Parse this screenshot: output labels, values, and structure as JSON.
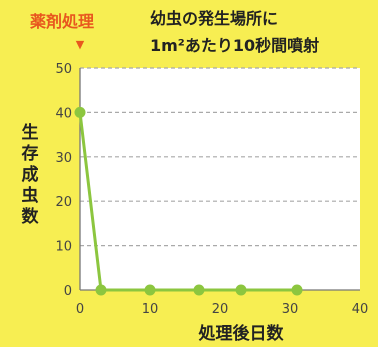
{
  "annotation": {
    "treatment_label": "薬剤処理",
    "treatment_marker": "▼",
    "note_line1": "幼虫の発生場所に",
    "note_line2": "1m²あたり10秒間噴射"
  },
  "colors": {
    "background": "#f7ee52",
    "plot_background": "#ffffff",
    "grid": "#a9a9a9",
    "line": "#8cc63f",
    "treatment_label": "#e8571e",
    "text": "#222222"
  },
  "chart_data": {
    "type": "line",
    "title": "",
    "xlabel": "処理後日数",
    "ylabel": "生存成虫数",
    "xlim": [
      0,
      40
    ],
    "ylim": [
      0,
      50
    ],
    "x_ticks": [
      0,
      10,
      20,
      30,
      40
    ],
    "y_ticks": [
      0,
      10,
      20,
      30,
      40,
      50
    ],
    "grid": true,
    "x": [
      0,
      3,
      10,
      17,
      23,
      31
    ],
    "y": [
      40,
      0,
      0,
      0,
      0,
      0
    ]
  }
}
